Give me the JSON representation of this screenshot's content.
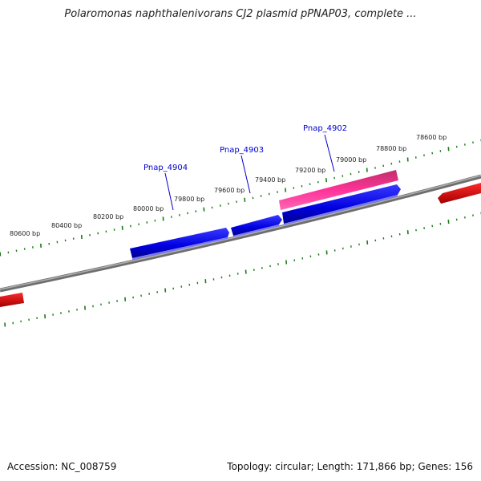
{
  "title": "Polaromonas naphthalenivorans CJ2 plasmid pPNAP03, complete ...",
  "footer": {
    "accession": "Accession: NC_008759",
    "summary": "Topology: circular; Length: 171,866 bp; Genes: 156"
  },
  "colors": {
    "backbone": "#808080",
    "tick": "#1a7a1a",
    "gene_forward": "#0000e0",
    "gene_highlight": "#ff3399",
    "gene_other": "#ee0000",
    "label": "#0000cc"
  },
  "scale_labels": [
    "80600 bp",
    "80400 bp",
    "80200 bp",
    "80000 bp",
    "79800 bp",
    "79600 bp",
    "79400 bp",
    "79200 bp",
    "79000 bp",
    "78800 bp",
    "78600 bp"
  ],
  "gene_labels": [
    "Pnap_4904",
    "Pnap_4903",
    "Pnap_4902"
  ]
}
